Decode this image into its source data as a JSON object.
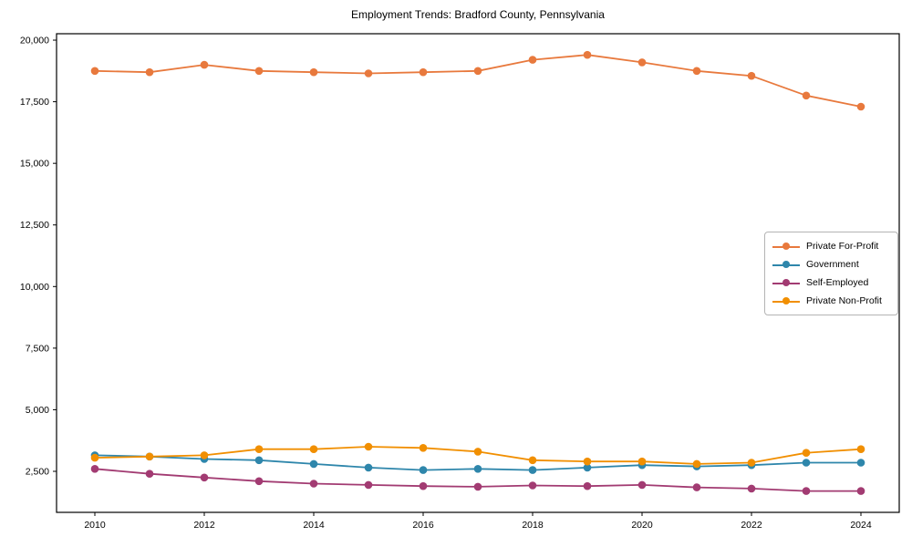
{
  "chart_data": {
    "type": "line",
    "title": "Employment Trends: Bradford County, Pennsylvania",
    "x": [
      2010,
      2011,
      2012,
      2013,
      2014,
      2015,
      2016,
      2017,
      2018,
      2019,
      2020,
      2021,
      2022,
      2023,
      2024
    ],
    "series": [
      {
        "name": "Private For-Profit",
        "color": "#e8793d",
        "values": [
          18750,
          18700,
          19000,
          18750,
          18700,
          18650,
          18700,
          18750,
          19200,
          19400,
          19100,
          18750,
          18550,
          17750,
          17300
        ]
      },
      {
        "name": "Government",
        "color": "#2e86ab",
        "values": [
          3150,
          3100,
          3000,
          2950,
          2800,
          2650,
          2550,
          2600,
          2550,
          2650,
          2750,
          2700,
          2750,
          2850,
          2850
        ]
      },
      {
        "name": "Self-Employed",
        "color": "#a23b72",
        "values": [
          2600,
          2400,
          2250,
          2100,
          2000,
          1950,
          1900,
          1875,
          1925,
          1900,
          1950,
          1850,
          1800,
          1700,
          1700
        ]
      },
      {
        "name": "Private Non-Profit",
        "color": "#f18f01",
        "values": [
          3050,
          3100,
          3150,
          3400,
          3400,
          3500,
          3450,
          3300,
          2950,
          2900,
          2900,
          2800,
          2850,
          3250,
          3400
        ]
      }
    ],
    "xticks": [
      2010,
      2012,
      2014,
      2016,
      2018,
      2020,
      2022,
      2024
    ],
    "yticks": [
      "2,500",
      "5,000",
      "7,500",
      "10,000",
      "12,500",
      "15,000",
      "17,500",
      "20,000"
    ],
    "ytick_values": [
      2500,
      5000,
      7500,
      10000,
      12500,
      15000,
      17500,
      20000
    ],
    "xlim": [
      2009.3,
      2024.7
    ],
    "ylim": [
      835,
      20260
    ],
    "grid": false,
    "legend_position": "center-right"
  }
}
